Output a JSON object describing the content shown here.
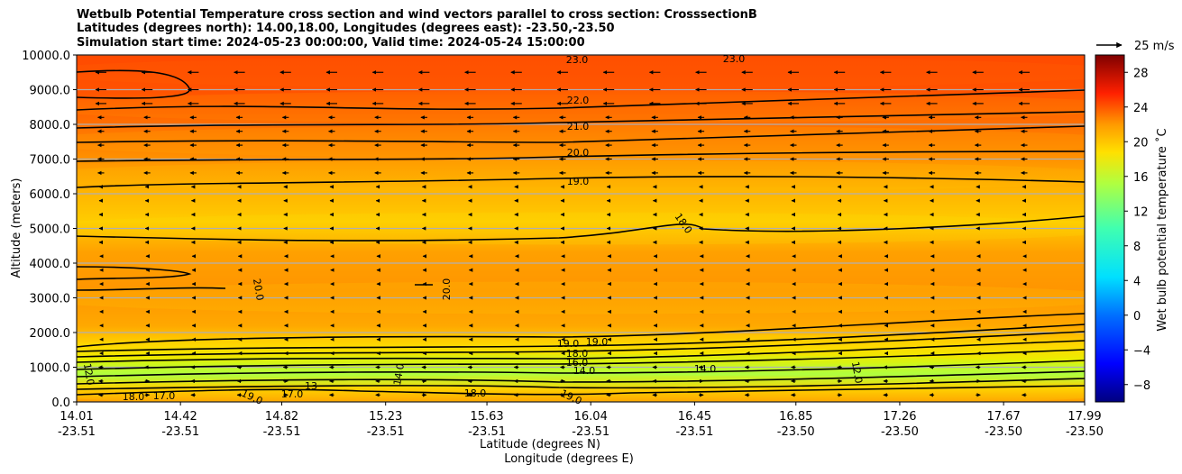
{
  "titles": [
    "Wetbulb Potential Temperature cross section and wind vectors parallel to cross section: CrosssectionB",
    "Latitudes (degrees north): 14.00,18.00, Longitudes (degrees east): -23.50,-23.50",
    "Simulation start time: 2024-05-23 00:00:00, Valid time: 2024-05-24 15:00:00"
  ],
  "chart_data": {
    "type": "heatmap",
    "title": "Wetbulb Potential Temperature cross section and wind vectors parallel to cross section: CrosssectionB",
    "xlabel": "Latitude (degrees N)",
    "xlabel2": "Longitude (degrees E)",
    "ylabel": "Altitude (meters)",
    "xlim": [
      14.01,
      17.99
    ],
    "ylim": [
      0,
      10000
    ],
    "x_ticks": [
      {
        "lat": "14.01",
        "lon": "-23.51"
      },
      {
        "lat": "14.42",
        "lon": "-23.51"
      },
      {
        "lat": "14.82",
        "lon": "-23.51"
      },
      {
        "lat": "15.23",
        "lon": "-23.51"
      },
      {
        "lat": "15.63",
        "lon": "-23.51"
      },
      {
        "lat": "16.04",
        "lon": "-23.51"
      },
      {
        "lat": "16.45",
        "lon": "-23.51"
      },
      {
        "lat": "16.85",
        "lon": "-23.50"
      },
      {
        "lat": "17.26",
        "lon": "-23.50"
      },
      {
        "lat": "17.67",
        "lon": "-23.50"
      },
      {
        "lat": "17.99",
        "lon": "-23.50"
      }
    ],
    "y_ticks": [
      "0.0",
      "1000.0",
      "2000.0",
      "3000.0",
      "4000.0",
      "5000.0",
      "6000.0",
      "7000.0",
      "8000.0",
      "9000.0",
      "10000.0"
    ],
    "colorbar": {
      "label": "Wet bulb potential temperature $^\\circ$C",
      "label_display": "Wet bulb potential temperature ˚C",
      "range": [
        -10,
        30
      ],
      "ticks": [
        "−8",
        "−4",
        "0",
        "4",
        "8",
        "12",
        "16",
        "20",
        "24",
        "28"
      ]
    },
    "wind_key": {
      "label": "25 m/s",
      "speed": 25
    },
    "temperature_bands": [
      {
        "altitude": 9500,
        "value": 23.5
      },
      {
        "altitude": 8500,
        "value": 22
      },
      {
        "altitude": 7500,
        "value": 21
      },
      {
        "altitude": 6500,
        "value": 20
      },
      {
        "altitude": 5000,
        "value": 18.5
      },
      {
        "altitude": 3000,
        "value": 19.5
      },
      {
        "altitude": 1500,
        "value": 18.5
      },
      {
        "altitude": 900,
        "value": 14.5
      },
      {
        "altitude": 300,
        "value": 18.5
      }
    ],
    "contour_levels": [
      {
        "value": 23.0,
        "altitude": 10000
      },
      {
        "value": 22.0,
        "altitude": 8950
      },
      {
        "value": 21.0,
        "altitude": 8000
      },
      {
        "value": 20.0,
        "altitude": 7000
      },
      {
        "value": 19.0,
        "altitude": 6300
      },
      {
        "value": 18.0,
        "altitude": 5200
      },
      {
        "value": 20.0,
        "altitude": 3400
      },
      {
        "value": 19.0,
        "altitude": 1800
      },
      {
        "value": 18.0,
        "altitude": 1500
      },
      {
        "value": 16.0,
        "altitude": 1200
      },
      {
        "value": 14.0,
        "altitude": 1000
      },
      {
        "value": 17.0,
        "altitude": 300
      },
      {
        "value": 19.0,
        "altitude": 100
      }
    ],
    "contour_labels": [
      "23.0",
      "23.0",
      "22.0",
      "21.0",
      "20.0",
      "19.0",
      "18.0",
      "20.0",
      "20.0",
      "19.0",
      "19.0",
      "18.0",
      "16.0",
      "14.0",
      "14.0",
      "14.0",
      "12.0",
      "18.0",
      "17.0",
      "17.0",
      "18.0",
      "19.0",
      "19.0",
      "13",
      "12.0"
    ]
  }
}
